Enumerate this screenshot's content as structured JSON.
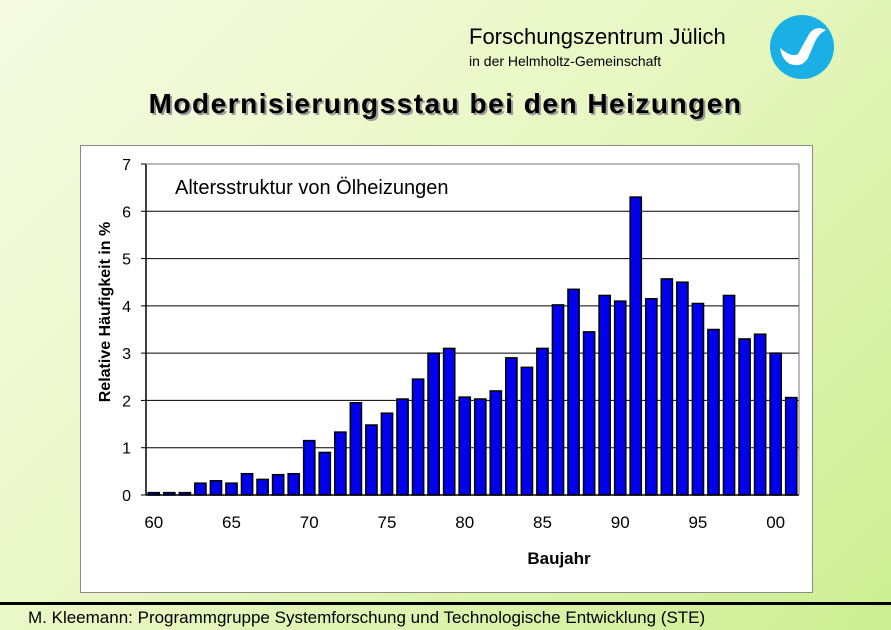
{
  "header": {
    "org_name": "Forschungszentrum Jülich",
    "org_subtitle": "in der Helmholtz-Gemeinschaft"
  },
  "slide_title": "Modernisierungsstau bei den Heizungen",
  "footer": "M. Kleemann: Programmgruppe Systemforschung und Technologische Entwicklung (STE)",
  "colors": {
    "bar": "#0000ee",
    "bar_outline": "#000000",
    "logo": "#1ab0e6"
  },
  "chart_data": {
    "type": "bar",
    "title": "Altersstruktur von Ölheizungen",
    "xlabel": "Baujahr",
    "ylabel": "Relative Häufigkeit in %",
    "ylim": [
      0,
      7
    ],
    "yticks": [
      0,
      1,
      2,
      3,
      4,
      5,
      6,
      7
    ],
    "xtick_labels": [
      "60",
      "65",
      "70",
      "75",
      "80",
      "85",
      "90",
      "95",
      "00"
    ],
    "grid": true,
    "legend": "none",
    "categories": [
      "1960",
      "1961",
      "1962",
      "1963",
      "1964",
      "1965",
      "1966",
      "1967",
      "1968",
      "1969",
      "1970",
      "1971",
      "1972",
      "1973",
      "1974",
      "1975",
      "1976",
      "1977",
      "1978",
      "1979",
      "1980",
      "1981",
      "1982",
      "1983",
      "1984",
      "1985",
      "1986",
      "1987",
      "1988",
      "1989",
      "1990",
      "1991",
      "1992",
      "1993",
      "1994",
      "1995",
      "1996",
      "1997",
      "1998",
      "1999",
      "2000",
      "2001"
    ],
    "values": [
      0.05,
      0.05,
      0.05,
      0.25,
      0.3,
      0.25,
      0.45,
      0.33,
      0.43,
      0.45,
      1.15,
      0.9,
      1.33,
      1.95,
      1.48,
      1.73,
      2.03,
      2.45,
      3.0,
      3.1,
      2.07,
      2.03,
      2.2,
      2.9,
      2.7,
      3.1,
      4.02,
      4.35,
      3.45,
      4.22,
      4.1,
      6.3,
      4.15,
      4.57,
      4.5,
      4.05,
      3.5,
      4.22,
      3.3,
      3.4,
      3.0,
      2.06
    ]
  }
}
